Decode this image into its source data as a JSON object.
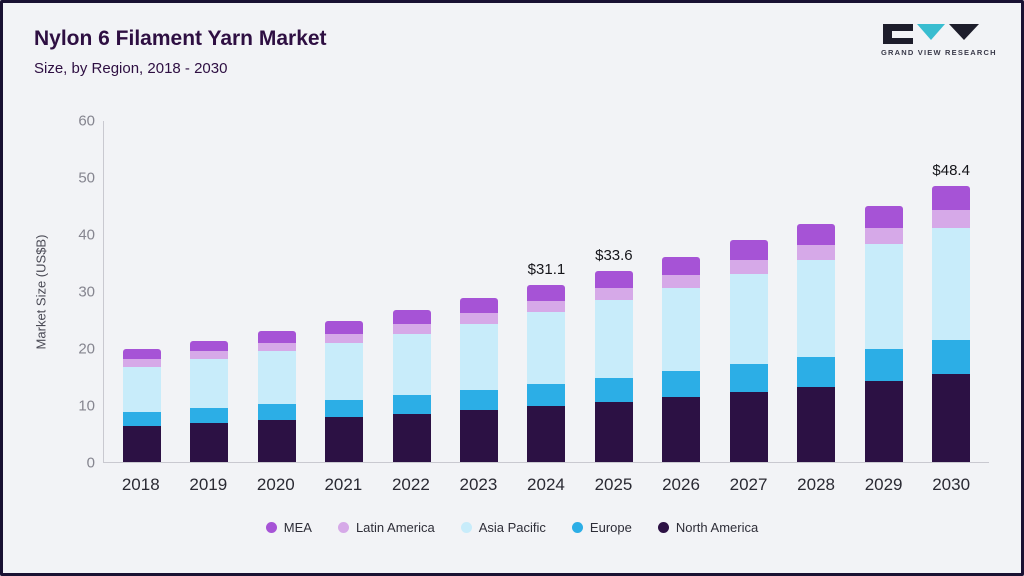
{
  "header": {
    "title": "Nylon 6 Filament Yarn Market",
    "subtitle": "Size, by Region, 2018 - 2030"
  },
  "logo": {
    "text": "GRAND VIEW RESEARCH"
  },
  "chart_data": {
    "type": "bar",
    "stacked": true,
    "title": "Nylon 6 Filament Yarn Market Size, by Region, 2018 - 2030",
    "ylabel": "Market Size (US$B)",
    "xlabel": "",
    "ylim": [
      0,
      60
    ],
    "yticks": [
      0,
      10,
      20,
      30,
      40,
      50,
      60
    ],
    "grid": false,
    "legend_position": "bottom",
    "categories": [
      "2018",
      "2019",
      "2020",
      "2021",
      "2022",
      "2023",
      "2024",
      "2025",
      "2026",
      "2027",
      "2028",
      "2029",
      "2030"
    ],
    "series": [
      {
        "name": "North America",
        "color": "#2c1144",
        "values": [
          6.3,
          6.8,
          7.3,
          7.9,
          8.5,
          9.1,
          9.8,
          10.6,
          11.4,
          12.3,
          13.2,
          14.3,
          15.4
        ]
      },
      {
        "name": "Europe",
        "color": "#2caee6",
        "values": [
          2.4,
          2.6,
          2.8,
          3.0,
          3.3,
          3.6,
          3.9,
          4.2,
          4.5,
          4.9,
          5.2,
          5.6,
          6.0
        ]
      },
      {
        "name": "Asia Pacific",
        "color": "#c8ecfa",
        "values": [
          8.0,
          8.6,
          9.3,
          10.0,
          10.7,
          11.6,
          12.6,
          13.6,
          14.6,
          15.8,
          17.0,
          18.3,
          19.7
        ]
      },
      {
        "name": "Latin America",
        "color": "#d6a9e8",
        "values": [
          1.3,
          1.4,
          1.5,
          1.6,
          1.7,
          1.9,
          2.0,
          2.2,
          2.3,
          2.5,
          2.7,
          2.9,
          3.1
        ]
      },
      {
        "name": "MEA",
        "color": "#a653d6",
        "values": [
          1.8,
          1.9,
          2.1,
          2.3,
          2.4,
          2.6,
          2.8,
          3.0,
          3.2,
          3.4,
          3.6,
          3.9,
          4.2
        ]
      }
    ],
    "totals": [
      19.8,
      21.3,
      23.0,
      24.8,
      26.6,
      28.8,
      31.1,
      33.6,
      36.0,
      38.9,
      41.7,
      45.0,
      48.4
    ],
    "legend": [
      "MEA",
      "Latin America",
      "Asia Pacific",
      "Europe",
      "North America"
    ],
    "annotations": {
      "2024": "$31.1",
      "2025": "$33.6",
      "2030": "$48.4"
    }
  },
  "logo_colors": {
    "dark": "#1d1d2b",
    "teal": "#39bdd0"
  }
}
